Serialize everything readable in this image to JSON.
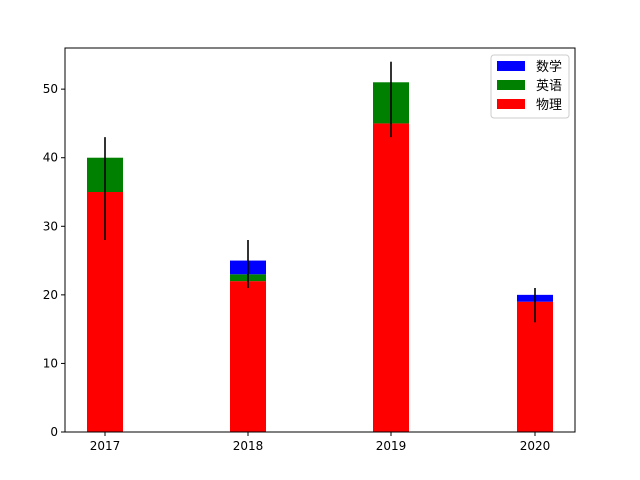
{
  "chart_data": {
    "type": "bar",
    "stacked": true,
    "categories": [
      "2017",
      "2018",
      "2019",
      "2020"
    ],
    "ylim": [
      0,
      56
    ],
    "yticks": [
      0,
      10,
      20,
      30,
      40,
      50
    ],
    "grid": false,
    "legend_position": "top-right",
    "series": [
      {
        "name": "物理",
        "color": "#ff0000",
        "values": [
          35,
          22,
          45,
          19
        ]
      },
      {
        "name": "英语",
        "color": "#008000",
        "values": [
          5,
          1,
          6,
          0
        ]
      },
      {
        "name": "数学",
        "color": "#0000ff",
        "values": [
          0,
          2,
          0,
          1
        ]
      }
    ],
    "legend_order": [
      "数学",
      "英语",
      "物理"
    ],
    "error_bars": {
      "color": "#000000",
      "center": [
        35,
        22,
        45,
        19
      ],
      "low": [
        28,
        21,
        43,
        16
      ],
      "high": [
        43,
        28,
        54,
        21
      ]
    }
  }
}
